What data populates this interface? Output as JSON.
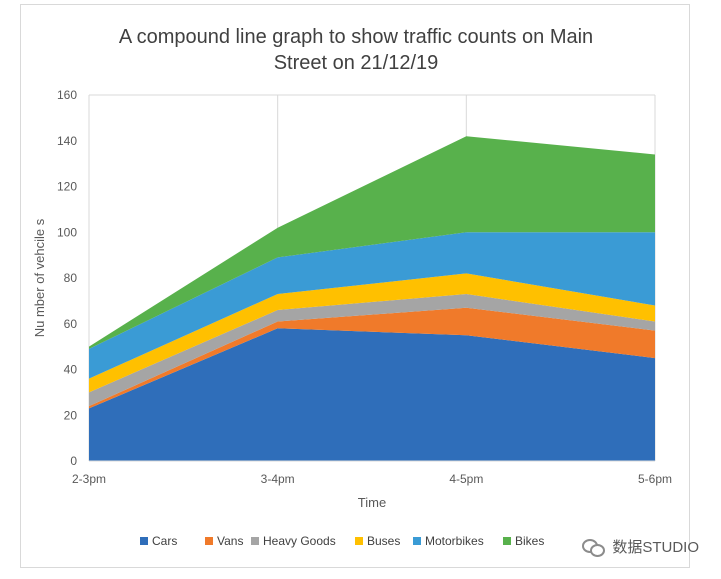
{
  "chart_data": {
    "type": "area",
    "stacked": true,
    "title": "A compound line graph to show traffic counts on Main Street on 21/12/19",
    "title_lines": [
      "A compound  line graph to show traffic counts on Main",
      "Street on 21/12/19"
    ],
    "xlabel": "Time",
    "ylabel": "Nu mber of vehcile s",
    "categories": [
      "2-3pm",
      "3-4pm",
      "4-5pm",
      "5-6pm"
    ],
    "ylim": [
      0,
      160
    ],
    "yticks": [
      0,
      20,
      40,
      60,
      80,
      100,
      120,
      140,
      160
    ],
    "grid": "vertical at categories",
    "legend_position": "bottom",
    "series": [
      {
        "name": "Cars",
        "color": "#2f6eba",
        "values": [
          23,
          58,
          55,
          45
        ]
      },
      {
        "name": "Vans",
        "color": "#f07a2a",
        "values": [
          1,
          3,
          12,
          12
        ]
      },
      {
        "name": "Heavy Goods",
        "color": "#a5a5a5",
        "values": [
          6,
          5,
          6,
          4
        ]
      },
      {
        "name": "Buses",
        "color": "#ffc000",
        "values": [
          6,
          7,
          9,
          7
        ]
      },
      {
        "name": "Motorbikes",
        "color": "#3a9bd5",
        "values": [
          13,
          16,
          18,
          32
        ]
      },
      {
        "name": "Bikes",
        "color": "#58b14c",
        "values": [
          1,
          13,
          42,
          34
        ]
      }
    ]
  },
  "watermark": {
    "text": "数据STUDIO",
    "icon": "wechat-icon"
  }
}
